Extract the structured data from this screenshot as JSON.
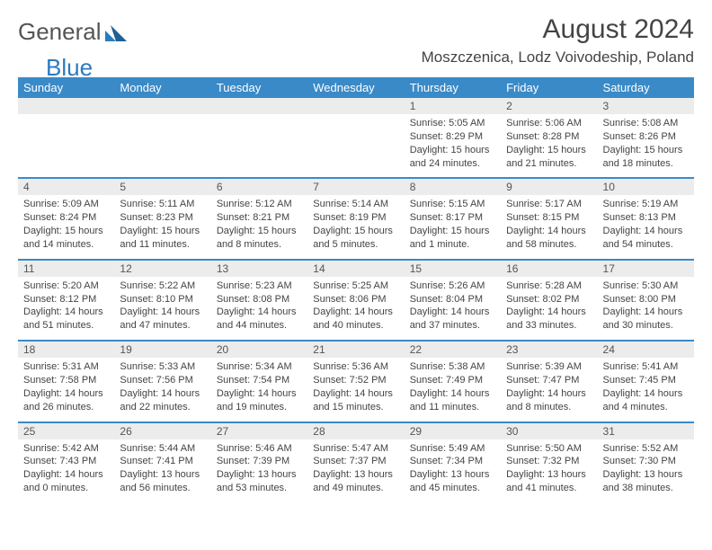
{
  "logo": {
    "text_general": "General",
    "text_blue": "Blue",
    "mark_color": "#2b7bbf"
  },
  "header": {
    "month_title": "August 2024",
    "location": "Moszczenica, Lodz Voivodeship, Poland"
  },
  "colors": {
    "header_bg": "#3a8ac8",
    "header_text": "#ffffff",
    "daynum_bg": "#ececec",
    "separator": "#3a8ac8"
  },
  "day_labels": [
    "Sunday",
    "Monday",
    "Tuesday",
    "Wednesday",
    "Thursday",
    "Friday",
    "Saturday"
  ],
  "weeks": [
    [
      null,
      null,
      null,
      null,
      {
        "num": "1",
        "sunrise": "Sunrise: 5:05 AM",
        "sunset": "Sunset: 8:29 PM",
        "daylight": "Daylight: 15 hours and 24 minutes."
      },
      {
        "num": "2",
        "sunrise": "Sunrise: 5:06 AM",
        "sunset": "Sunset: 8:28 PM",
        "daylight": "Daylight: 15 hours and 21 minutes."
      },
      {
        "num": "3",
        "sunrise": "Sunrise: 5:08 AM",
        "sunset": "Sunset: 8:26 PM",
        "daylight": "Daylight: 15 hours and 18 minutes."
      }
    ],
    [
      {
        "num": "4",
        "sunrise": "Sunrise: 5:09 AM",
        "sunset": "Sunset: 8:24 PM",
        "daylight": "Daylight: 15 hours and 14 minutes."
      },
      {
        "num": "5",
        "sunrise": "Sunrise: 5:11 AM",
        "sunset": "Sunset: 8:23 PM",
        "daylight": "Daylight: 15 hours and 11 minutes."
      },
      {
        "num": "6",
        "sunrise": "Sunrise: 5:12 AM",
        "sunset": "Sunset: 8:21 PM",
        "daylight": "Daylight: 15 hours and 8 minutes."
      },
      {
        "num": "7",
        "sunrise": "Sunrise: 5:14 AM",
        "sunset": "Sunset: 8:19 PM",
        "daylight": "Daylight: 15 hours and 5 minutes."
      },
      {
        "num": "8",
        "sunrise": "Sunrise: 5:15 AM",
        "sunset": "Sunset: 8:17 PM",
        "daylight": "Daylight: 15 hours and 1 minute."
      },
      {
        "num": "9",
        "sunrise": "Sunrise: 5:17 AM",
        "sunset": "Sunset: 8:15 PM",
        "daylight": "Daylight: 14 hours and 58 minutes."
      },
      {
        "num": "10",
        "sunrise": "Sunrise: 5:19 AM",
        "sunset": "Sunset: 8:13 PM",
        "daylight": "Daylight: 14 hours and 54 minutes."
      }
    ],
    [
      {
        "num": "11",
        "sunrise": "Sunrise: 5:20 AM",
        "sunset": "Sunset: 8:12 PM",
        "daylight": "Daylight: 14 hours and 51 minutes."
      },
      {
        "num": "12",
        "sunrise": "Sunrise: 5:22 AM",
        "sunset": "Sunset: 8:10 PM",
        "daylight": "Daylight: 14 hours and 47 minutes."
      },
      {
        "num": "13",
        "sunrise": "Sunrise: 5:23 AM",
        "sunset": "Sunset: 8:08 PM",
        "daylight": "Daylight: 14 hours and 44 minutes."
      },
      {
        "num": "14",
        "sunrise": "Sunrise: 5:25 AM",
        "sunset": "Sunset: 8:06 PM",
        "daylight": "Daylight: 14 hours and 40 minutes."
      },
      {
        "num": "15",
        "sunrise": "Sunrise: 5:26 AM",
        "sunset": "Sunset: 8:04 PM",
        "daylight": "Daylight: 14 hours and 37 minutes."
      },
      {
        "num": "16",
        "sunrise": "Sunrise: 5:28 AM",
        "sunset": "Sunset: 8:02 PM",
        "daylight": "Daylight: 14 hours and 33 minutes."
      },
      {
        "num": "17",
        "sunrise": "Sunrise: 5:30 AM",
        "sunset": "Sunset: 8:00 PM",
        "daylight": "Daylight: 14 hours and 30 minutes."
      }
    ],
    [
      {
        "num": "18",
        "sunrise": "Sunrise: 5:31 AM",
        "sunset": "Sunset: 7:58 PM",
        "daylight": "Daylight: 14 hours and 26 minutes."
      },
      {
        "num": "19",
        "sunrise": "Sunrise: 5:33 AM",
        "sunset": "Sunset: 7:56 PM",
        "daylight": "Daylight: 14 hours and 22 minutes."
      },
      {
        "num": "20",
        "sunrise": "Sunrise: 5:34 AM",
        "sunset": "Sunset: 7:54 PM",
        "daylight": "Daylight: 14 hours and 19 minutes."
      },
      {
        "num": "21",
        "sunrise": "Sunrise: 5:36 AM",
        "sunset": "Sunset: 7:52 PM",
        "daylight": "Daylight: 14 hours and 15 minutes."
      },
      {
        "num": "22",
        "sunrise": "Sunrise: 5:38 AM",
        "sunset": "Sunset: 7:49 PM",
        "daylight": "Daylight: 14 hours and 11 minutes."
      },
      {
        "num": "23",
        "sunrise": "Sunrise: 5:39 AM",
        "sunset": "Sunset: 7:47 PM",
        "daylight": "Daylight: 14 hours and 8 minutes."
      },
      {
        "num": "24",
        "sunrise": "Sunrise: 5:41 AM",
        "sunset": "Sunset: 7:45 PM",
        "daylight": "Daylight: 14 hours and 4 minutes."
      }
    ],
    [
      {
        "num": "25",
        "sunrise": "Sunrise: 5:42 AM",
        "sunset": "Sunset: 7:43 PM",
        "daylight": "Daylight: 14 hours and 0 minutes."
      },
      {
        "num": "26",
        "sunrise": "Sunrise: 5:44 AM",
        "sunset": "Sunset: 7:41 PM",
        "daylight": "Daylight: 13 hours and 56 minutes."
      },
      {
        "num": "27",
        "sunrise": "Sunrise: 5:46 AM",
        "sunset": "Sunset: 7:39 PM",
        "daylight": "Daylight: 13 hours and 53 minutes."
      },
      {
        "num": "28",
        "sunrise": "Sunrise: 5:47 AM",
        "sunset": "Sunset: 7:37 PM",
        "daylight": "Daylight: 13 hours and 49 minutes."
      },
      {
        "num": "29",
        "sunrise": "Sunrise: 5:49 AM",
        "sunset": "Sunset: 7:34 PM",
        "daylight": "Daylight: 13 hours and 45 minutes."
      },
      {
        "num": "30",
        "sunrise": "Sunrise: 5:50 AM",
        "sunset": "Sunset: 7:32 PM",
        "daylight": "Daylight: 13 hours and 41 minutes."
      },
      {
        "num": "31",
        "sunrise": "Sunrise: 5:52 AM",
        "sunset": "Sunset: 7:30 PM",
        "daylight": "Daylight: 13 hours and 38 minutes."
      }
    ]
  ]
}
